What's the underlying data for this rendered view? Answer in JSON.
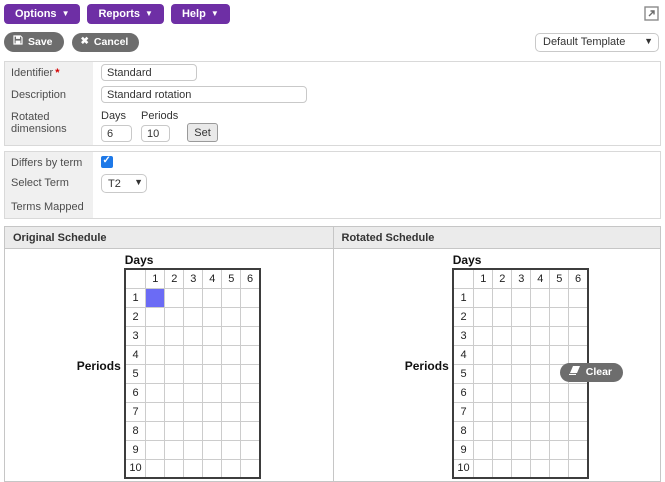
{
  "toolbar": {
    "menus": [
      {
        "label": "Options"
      },
      {
        "label": "Reports"
      },
      {
        "label": "Help"
      }
    ]
  },
  "actions": {
    "save_label": "Save",
    "cancel_label": "Cancel",
    "template_select": {
      "value": "Default Template",
      "options": [
        "Default Template"
      ]
    }
  },
  "form": {
    "identifier": {
      "label": "Identifier",
      "required_mark": "*",
      "value": "Standard"
    },
    "description": {
      "label": "Description",
      "value": "Standard rotation"
    },
    "rotated_dimensions": {
      "label": "Rotated dimensions",
      "days_label": "Days",
      "periods_label": "Periods",
      "days_value": "6",
      "periods_value": "10",
      "set_label": "Set"
    },
    "differs_by_term": {
      "label": "Differs by term",
      "checked": true
    },
    "select_term": {
      "label": "Select Term",
      "value": "T2",
      "options": [
        "T2"
      ]
    },
    "terms_mapped": {
      "label": "Terms Mapped",
      "value": ""
    }
  },
  "schedule": {
    "days_label": "Days",
    "periods_label": "Periods",
    "day_headers": [
      "1",
      "2",
      "3",
      "4",
      "5",
      "6"
    ],
    "period_headers": [
      "1",
      "2",
      "3",
      "4",
      "5",
      "6",
      "7",
      "8",
      "9",
      "10"
    ],
    "highlight_color": "#6b6bf5",
    "panels": {
      "original": {
        "title": "Original Schedule",
        "highlighted_cells": [
          {
            "period": "1",
            "day": "1"
          }
        ]
      },
      "rotated": {
        "title": "Rotated Schedule",
        "highlighted_cells": [],
        "clear_label": "Clear"
      }
    }
  },
  "colors": {
    "menu_purple": "#6e2fa5",
    "button_gray": "#6d6d6d",
    "checkbox_blue": "#1e79e8",
    "highlight_blue": "#6b6bf5"
  }
}
